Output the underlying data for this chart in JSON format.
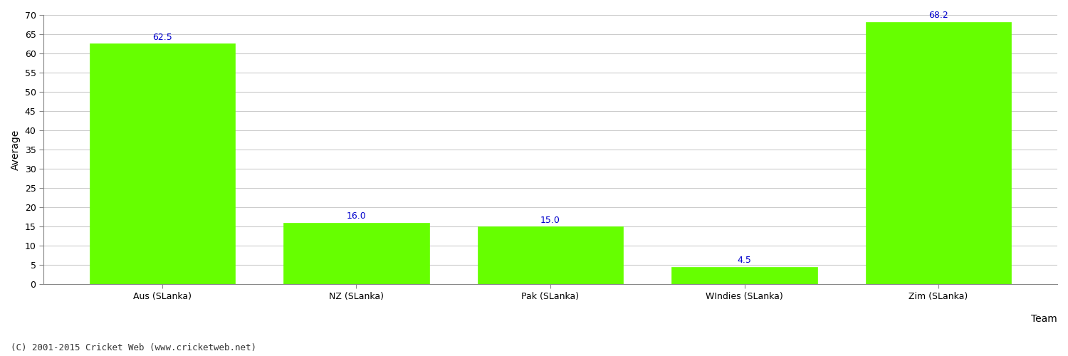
{
  "categories": [
    "Aus (SLanka)",
    "NZ (SLanka)",
    "Pak (SLanka)",
    "WIndies (SLanka)",
    "Zim (SLanka)"
  ],
  "values": [
    62.5,
    16.0,
    15.0,
    4.5,
    68.2
  ],
  "bar_color": "#66ff00",
  "bar_edgecolor": "#66ff00",
  "xlabel": "Team",
  "ylabel": "Average",
  "ylim": [
    0,
    70
  ],
  "yticks": [
    0,
    5,
    10,
    15,
    20,
    25,
    30,
    35,
    40,
    45,
    50,
    55,
    60,
    65,
    70
  ],
  "annotation_color": "#0000cc",
  "annotation_fontsize": 9,
  "axis_label_fontsize": 10,
  "tick_fontsize": 9,
  "background_color": "#ffffff",
  "grid_color": "#cccccc",
  "footer_text": "(C) 2001-2015 Cricket Web (www.cricketweb.net)",
  "footer_fontsize": 9,
  "footer_color": "#333333"
}
